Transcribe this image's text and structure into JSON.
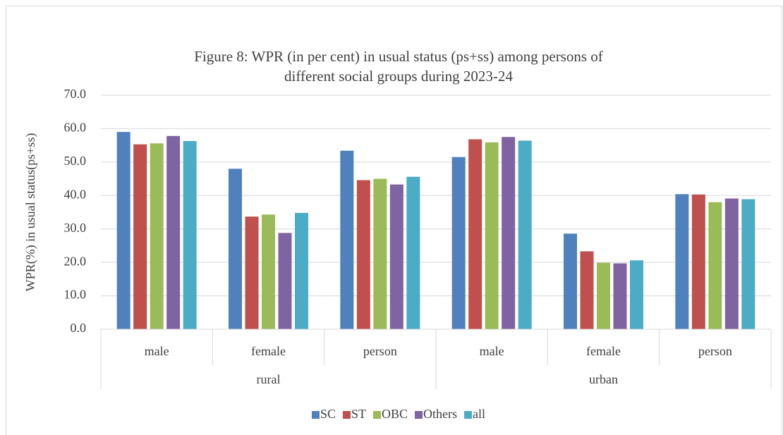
{
  "chart_data": {
    "type": "bar",
    "title": [
      "Figure 8: WPR (in per cent) in usual status (ps+ss) among persons of",
      "different social groups during 2023-24"
    ],
    "y_label": "WPR(%) in usual status(ps+ss)",
    "categories": [
      "male",
      "female",
      "person",
      "male",
      "female",
      "person"
    ],
    "category_groups": [
      "rural",
      "urban"
    ],
    "series": [
      {
        "name": "SC",
        "color": "#4f81bd",
        "values": [
          59.0,
          48.0,
          53.4,
          51.5,
          28.6,
          40.4
        ]
      },
      {
        "name": "ST",
        "color": "#c0504d",
        "values": [
          55.3,
          33.7,
          44.6,
          56.8,
          23.3,
          40.3
        ]
      },
      {
        "name": "OBC",
        "color": "#9bbb59",
        "values": [
          55.6,
          34.3,
          45.0,
          55.9,
          19.9,
          38.0
        ]
      },
      {
        "name": "Others",
        "color": "#8064a2",
        "values": [
          57.8,
          28.8,
          43.3,
          57.5,
          19.7,
          39.1
        ]
      },
      {
        "name": "all",
        "color": "#4bacc6",
        "values": [
          56.3,
          34.8,
          45.6,
          56.4,
          20.6,
          38.9
        ]
      }
    ],
    "ylim": [
      0,
      70
    ],
    "yticks": [
      {
        "value": 0,
        "label": "0.0"
      },
      {
        "value": 10,
        "label": "10.0"
      },
      {
        "value": 20,
        "label": "20.0"
      },
      {
        "value": 30,
        "label": "30.0"
      },
      {
        "value": 40,
        "label": "40.0"
      },
      {
        "value": 50,
        "label": "50.0"
      },
      {
        "value": 60,
        "label": "60.0"
      },
      {
        "value": 70,
        "label": "70.0"
      }
    ],
    "grid": true,
    "legend": "bottom"
  }
}
